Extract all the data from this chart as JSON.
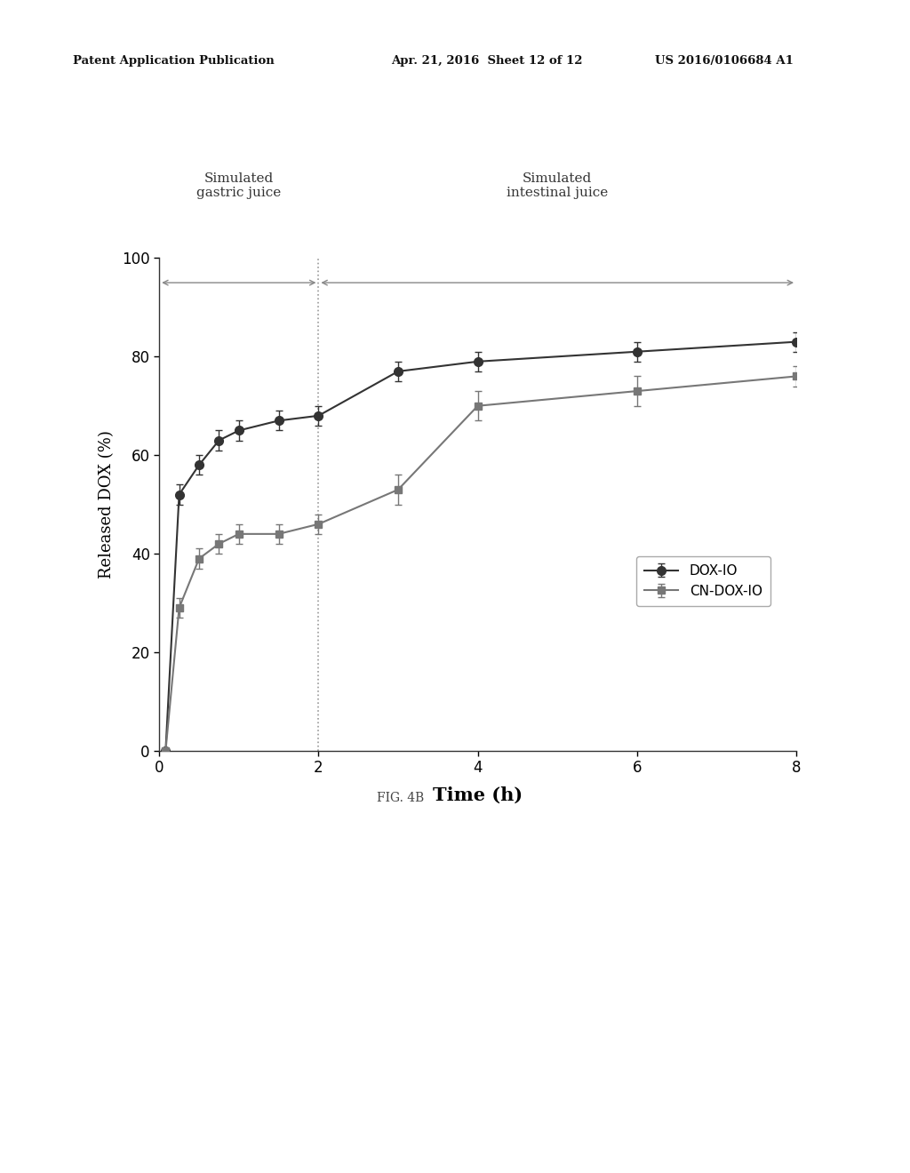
{
  "title": "FIG. 4B",
  "xlabel": "Time (h)",
  "ylabel": "Released DOX (%)",
  "xlim": [
    0,
    8
  ],
  "ylim": [
    0,
    100
  ],
  "xticks": [
    0,
    2,
    4,
    6,
    8
  ],
  "yticks": [
    0,
    20,
    40,
    60,
    80,
    100
  ],
  "vline_x": 2.0,
  "annotation_gastric": "Simulated\ngastric juice",
  "annotation_intestinal": "Simulated\nintestinal juice",
  "dox_io_x": [
    0.08,
    0.25,
    0.5,
    0.75,
    1.0,
    1.5,
    2.0,
    3.0,
    4.0,
    6.0,
    8.0
  ],
  "dox_io_y": [
    0,
    52,
    58,
    63,
    65,
    67,
    68,
    77,
    79,
    81,
    83
  ],
  "dox_io_err": [
    0,
    2,
    2,
    2,
    2,
    2,
    2,
    2,
    2,
    2,
    2
  ],
  "cn_dox_io_x": [
    0.08,
    0.25,
    0.5,
    0.75,
    1.0,
    1.5,
    2.0,
    3.0,
    4.0,
    6.0,
    8.0
  ],
  "cn_dox_io_y": [
    0,
    29,
    39,
    42,
    44,
    44,
    46,
    53,
    70,
    73,
    76
  ],
  "cn_dox_io_err": [
    0,
    2,
    2,
    2,
    2,
    2,
    2,
    3,
    3,
    3,
    2
  ],
  "dox_io_color": "#333333",
  "cn_dox_io_color": "#777777",
  "background_color": "#ffffff",
  "arrow_color": "#888888",
  "legend_labels": [
    "DOX-IO",
    "CN-DOX-IO"
  ],
  "fig_label": "FIG. 4B",
  "header_left": "Patent Application Publication",
  "header_mid": "Apr. 21, 2016  Sheet 12 of 12",
  "header_right": "US 2016/0106684 A1"
}
